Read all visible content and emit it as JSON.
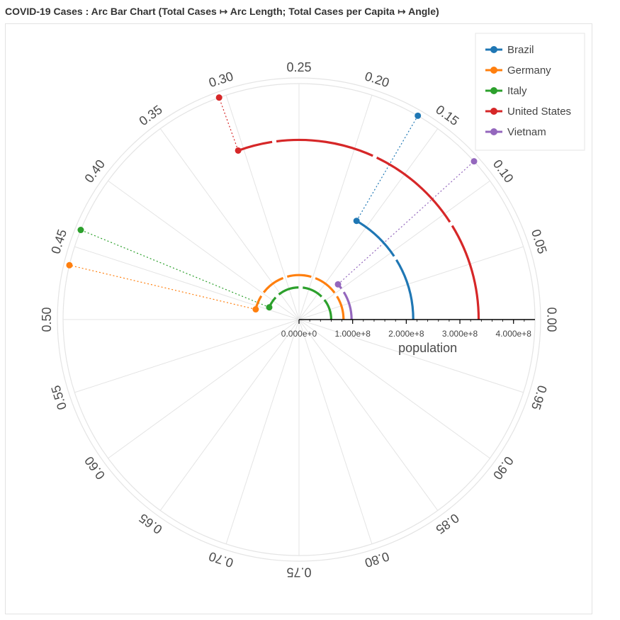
{
  "page": {
    "title": "COVID-19 Cases : Arc Bar Chart (Total Cases ↦ Arc Length; Total Cases per Capita ↦ Angle)"
  },
  "chart_data": {
    "type": "arc-bar",
    "title": "COVID-19 Cases : Arc Bar Chart (Total Cases ↦ Arc Length; Total Cases per Capita ↦ Angle)",
    "radial_axis": {
      "label": "population",
      "range": [
        0,
        440000000
      ],
      "ticks": [
        0,
        100000000,
        200000000,
        300000000,
        400000000
      ],
      "tick_labels": [
        "0.000e+0",
        "1.000e+8",
        "2.000e+8",
        "3.000e+8",
        "4.000e+8"
      ]
    },
    "angular_axis": {
      "range": [
        0,
        1
      ],
      "direction": "counterclockwise",
      "zero_position": "east",
      "ticks": [
        0.0,
        0.05,
        0.1,
        0.15,
        0.2,
        0.25,
        0.3,
        0.35,
        0.4,
        0.45,
        0.5,
        0.55,
        0.6,
        0.65,
        0.7,
        0.75,
        0.8,
        0.85,
        0.9,
        0.95
      ],
      "tick_labels": [
        "0.00",
        "0.05",
        "0.10",
        "0.15",
        "0.20",
        "0.25",
        "0.30",
        "0.35",
        "0.40",
        "0.45",
        "0.50",
        "0.55",
        "0.60",
        "0.65",
        "0.70",
        "0.75",
        "0.80",
        "0.85",
        "0.90",
        "0.95"
      ]
    },
    "legend": {
      "position": "top-right"
    },
    "series": [
      {
        "name": "Brazil",
        "color": "#1f77b4",
        "population": 213000000,
        "cases_per_capita": 0.166
      },
      {
        "name": "Germany",
        "color": "#ff7f0e",
        "population": 83000000,
        "cases_per_capita": 0.463
      },
      {
        "name": "Italy",
        "color": "#2ca02c",
        "population": 60000000,
        "cases_per_capita": 0.438
      },
      {
        "name": "United States",
        "color": "#d62728",
        "population": 335000000,
        "cases_per_capita": 0.305
      },
      {
        "name": "Vietnam",
        "color": "#9467bd",
        "population": 98000000,
        "cases_per_capita": 0.117
      }
    ]
  }
}
